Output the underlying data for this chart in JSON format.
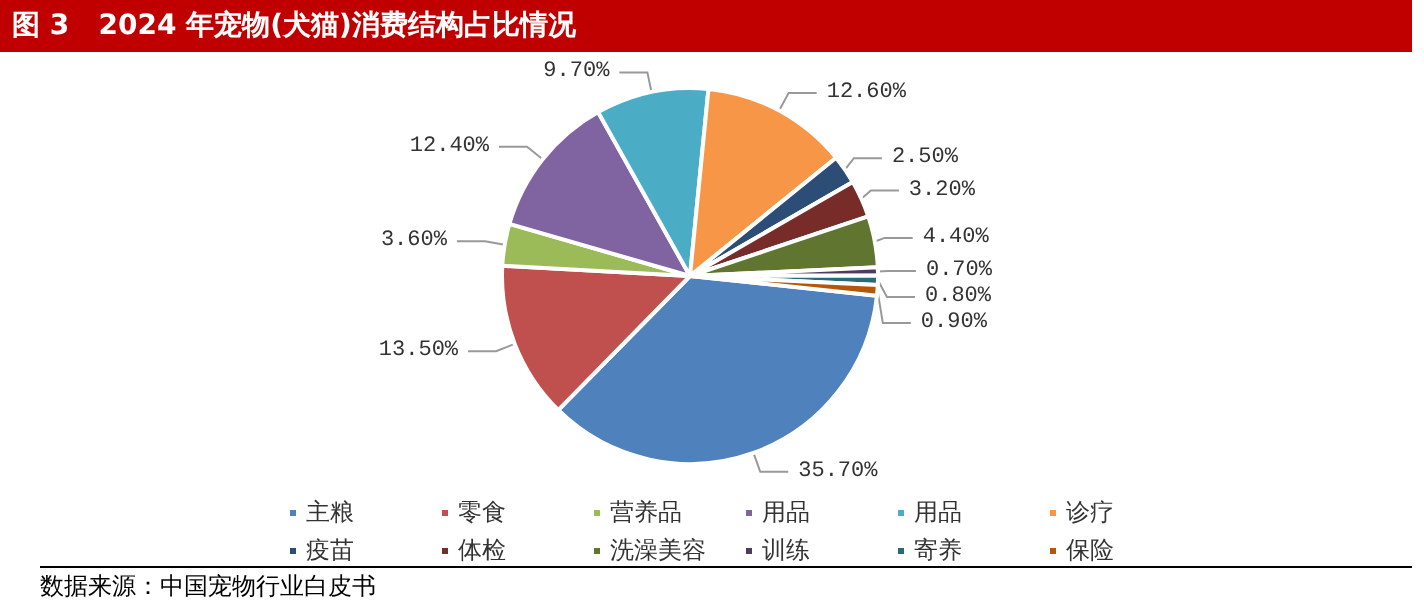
{
  "chart_data": {
    "type": "pie",
    "title": "图 3   2024 年宠物(犬猫)消费结构占比情况",
    "categories": [
      "主粮",
      "零食",
      "营养品",
      "用品",
      "用品",
      "诊疗",
      "疫苗",
      "体检",
      "洗澡美容",
      "训练",
      "寄养",
      "保险"
    ],
    "values": [
      35.7,
      13.5,
      3.6,
      12.4,
      9.7,
      12.6,
      2.5,
      3.2,
      4.4,
      0.7,
      0.8,
      0.9
    ],
    "value_labels": [
      "35.70%",
      "13.50%",
      "3.60%",
      "12.40%",
      "9.70%",
      "12.60%",
      "2.50%",
      "3.20%",
      "4.40%",
      "0.70%",
      "0.80%",
      "0.90%"
    ],
    "colors": [
      "#4f81bd",
      "#c0504d",
      "#9bbb59",
      "#8064a2",
      "#4bacc6",
      "#f79646",
      "#2c4d75",
      "#772c2a",
      "#5f7530",
      "#4d3b62",
      "#276a7c",
      "#b65708"
    ],
    "legend": "bottom",
    "annotations": [
      "数据来源：中国宠物行业白皮书"
    ]
  }
}
